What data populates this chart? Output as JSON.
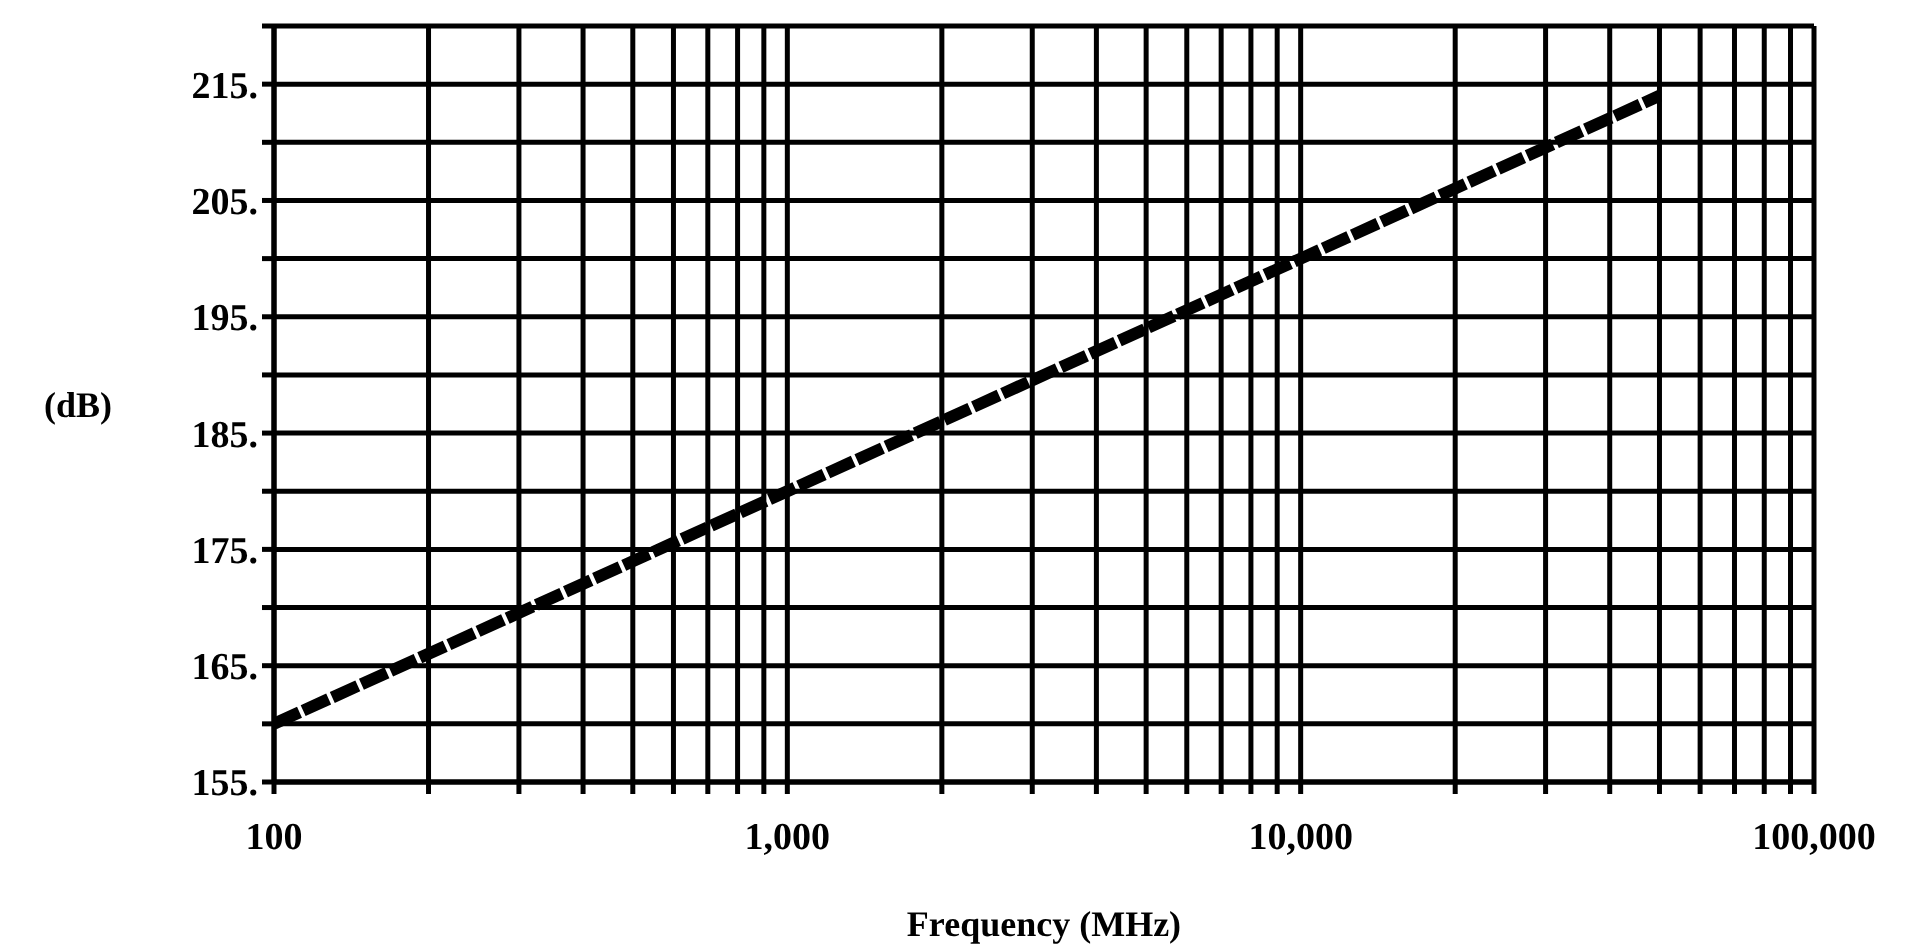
{
  "chart_data": {
    "type": "line",
    "xlabel": "Frequency (MHz)",
    "ylabel": "(dB)",
    "log": "x",
    "grid": true,
    "marker": "none",
    "line_style": "dashed",
    "x": [
      100,
      1000,
      10000,
      50000
    ],
    "series": [
      {
        "color": "#000000",
        "values": [
          160,
          180,
          200,
          214
        ]
      }
    ],
    "xlim": [
      100,
      100000
    ],
    "xticks": [
      100,
      {
        "value": 200,
        "label": null
      },
      {
        "value": 300,
        "label": null
      },
      {
        "value": 400,
        "label": null
      },
      {
        "value": 500,
        "label": null
      },
      {
        "value": 600,
        "label": null
      },
      {
        "value": 700,
        "label": null
      },
      {
        "value": 800,
        "label": null
      },
      {
        "value": 900,
        "label": null
      },
      {
        "value": 1000,
        "label": "1,000"
      },
      {
        "value": 2000,
        "label": null
      },
      {
        "value": 3000,
        "label": null
      },
      {
        "value": 4000,
        "label": null
      },
      {
        "value": 5000,
        "label": null
      },
      {
        "value": 6000,
        "label": null
      },
      {
        "value": 7000,
        "label": null
      },
      {
        "value": 8000,
        "label": null
      },
      {
        "value": 9000,
        "label": null
      },
      {
        "value": 10000,
        "label": "10,000"
      },
      {
        "value": 20000,
        "label": null
      },
      {
        "value": 30000,
        "label": null
      },
      {
        "value": 40000,
        "label": null
      },
      {
        "value": 50000,
        "label": null
      },
      {
        "value": 60000,
        "label": null
      },
      {
        "value": 70000,
        "label": null
      },
      {
        "value": 80000,
        "label": null
      },
      {
        "value": 90000,
        "label": null
      },
      {
        "value": 100000,
        "label": "100,000"
      }
    ],
    "ylim": [
      155,
      220
    ],
    "yticks": [
      {
        "value": 155,
        "label": "155."
      },
      {
        "value": 160,
        "label": null
      },
      {
        "value": 165,
        "label": "165."
      },
      {
        "value": 170,
        "label": null
      },
      {
        "value": 175,
        "label": "175."
      },
      {
        "value": 180,
        "label": null
      },
      {
        "value": 185,
        "label": "185."
      },
      {
        "value": 190,
        "label": null
      },
      {
        "value": 195,
        "label": "195."
      },
      {
        "value": 200,
        "label": null
      },
      {
        "value": 205,
        "label": "205."
      },
      {
        "value": 210,
        "label": null
      },
      {
        "value": 215,
        "label": "215."
      },
      {
        "value": 220,
        "label": null
      }
    ]
  }
}
